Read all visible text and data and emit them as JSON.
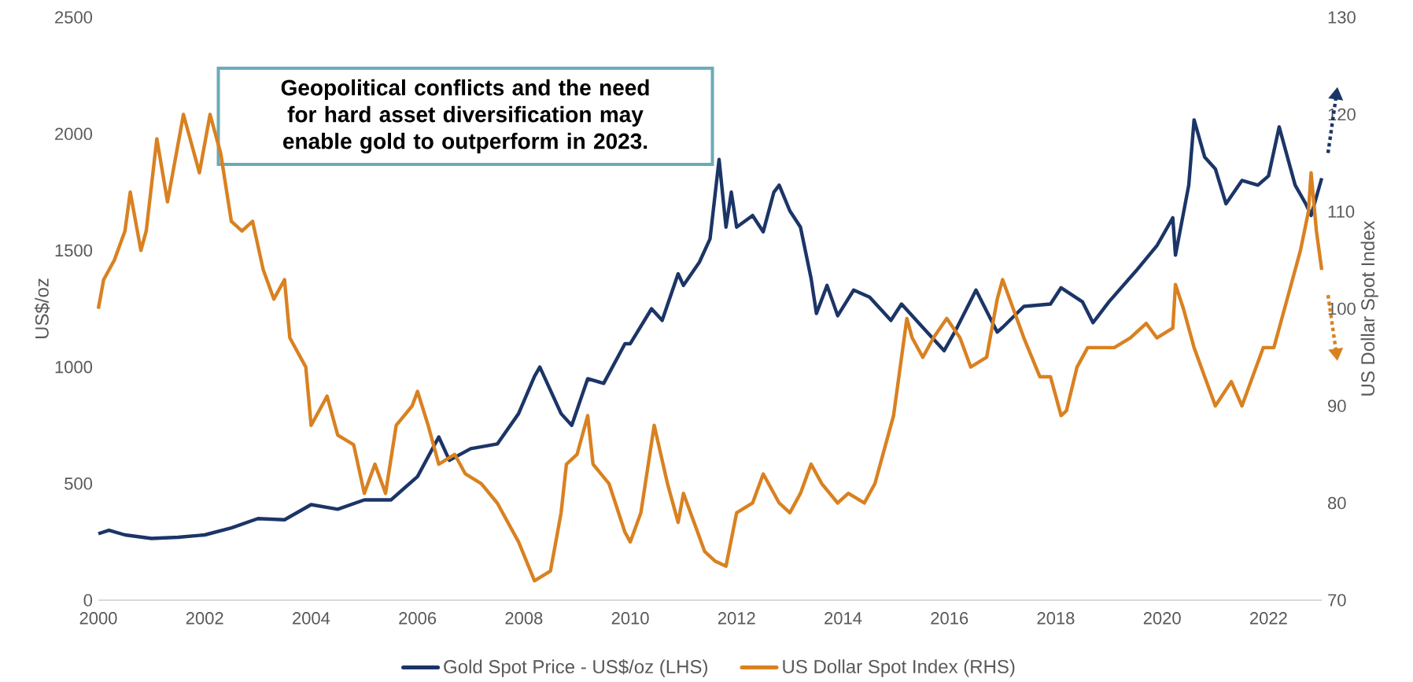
{
  "chart_data": {
    "type": "line",
    "annotations": [
      "Geopolitical conflicts and the need for hard asset diversification may enable gold to outperform in 2023."
    ],
    "ylabel": "US$/oz",
    "y2label": "US Dollar Spot Index",
    "xlim": [
      2000,
      2023
    ],
    "xticks": [
      2000,
      2002,
      2004,
      2006,
      2008,
      2010,
      2012,
      2014,
      2016,
      2018,
      2020,
      2022
    ],
    "ylim": [
      0,
      2500
    ],
    "yticks": [
      0,
      500,
      1000,
      1500,
      2000,
      2500
    ],
    "y2lim": [
      70,
      130
    ],
    "y2ticks": [
      70,
      80,
      90,
      100,
      110,
      120,
      130
    ],
    "legend": "bottom",
    "series": [
      {
        "name": "Gold Spot Price - US$/oz (LHS)",
        "color": "#1c3567",
        "x": [
          2000.0,
          2000.2,
          2000.5,
          2001.0,
          2001.5,
          2002.0,
          2002.5,
          2003.0,
          2003.5,
          2004.0,
          2004.5,
          2005.0,
          2005.5,
          2006.0,
          2006.4,
          2006.6,
          2007.0,
          2007.5,
          2007.9,
          2008.2,
          2008.3,
          2008.7,
          2008.9,
          2009.2,
          2009.5,
          2009.9,
          2010.0,
          2010.4,
          2010.6,
          2010.9,
          2011.0,
          2011.3,
          2011.5,
          2011.67,
          2011.8,
          2011.9,
          2012.0,
          2012.3,
          2012.5,
          2012.7,
          2012.8,
          2013.0,
          2013.2,
          2013.4,
          2013.5,
          2013.7,
          2013.9,
          2014.2,
          2014.5,
          2014.9,
          2015.1,
          2015.5,
          2015.9,
          2016.1,
          2016.5,
          2016.9,
          2017.0,
          2017.4,
          2017.9,
          2018.1,
          2018.5,
          2018.7,
          2019.0,
          2019.5,
          2019.9,
          2020.2,
          2020.25,
          2020.5,
          2020.6,
          2020.8,
          2021.0,
          2021.2,
          2021.5,
          2021.8,
          2022.0,
          2022.2,
          2022.5,
          2022.7,
          2022.8,
          2023.0
        ],
        "values": [
          285,
          300,
          280,
          265,
          270,
          280,
          310,
          350,
          345,
          410,
          390,
          430,
          430,
          530,
          700,
          600,
          650,
          670,
          800,
          960,
          1000,
          800,
          750,
          950,
          930,
          1100,
          1100,
          1250,
          1200,
          1400,
          1350,
          1450,
          1550,
          1890,
          1600,
          1750,
          1600,
          1650,
          1580,
          1750,
          1780,
          1670,
          1600,
          1380,
          1230,
          1350,
          1220,
          1330,
          1300,
          1200,
          1270,
          1170,
          1070,
          1150,
          1330,
          1150,
          1170,
          1260,
          1270,
          1340,
          1280,
          1190,
          1280,
          1410,
          1520,
          1640,
          1480,
          1780,
          2060,
          1900,
          1850,
          1700,
          1800,
          1780,
          1820,
          2030,
          1780,
          1700,
          1650,
          1810
        ]
      },
      {
        "name": "US Dollar Spot Index (RHS)",
        "color": "#d98121",
        "axis": "y2",
        "x": [
          2000.0,
          2000.1,
          2000.3,
          2000.5,
          2000.6,
          2000.8,
          2000.9,
          2001.1,
          2001.3,
          2001.4,
          2001.6,
          2001.9,
          2002.1,
          2002.3,
          2002.5,
          2002.7,
          2002.9,
          2003.1,
          2003.3,
          2003.5,
          2003.6,
          2003.9,
          2004.0,
          2004.3,
          2004.5,
          2004.8,
          2005.0,
          2005.2,
          2005.4,
          2005.6,
          2005.9,
          2006.0,
          2006.2,
          2006.4,
          2006.7,
          2006.9,
          2007.2,
          2007.5,
          2007.9,
          2008.2,
          2008.5,
          2008.7,
          2008.8,
          2009.0,
          2009.2,
          2009.3,
          2009.6,
          2009.9,
          2010.0,
          2010.2,
          2010.45,
          2010.7,
          2010.9,
          2011.0,
          2011.4,
          2011.6,
          2011.8,
          2012.0,
          2012.3,
          2012.5,
          2012.8,
          2013.0,
          2013.2,
          2013.4,
          2013.6,
          2013.9,
          2014.1,
          2014.4,
          2014.6,
          2014.8,
          2014.95,
          2015.2,
          2015.3,
          2015.5,
          2015.7,
          2015.95,
          2016.2,
          2016.4,
          2016.7,
          2016.9,
          2017.0,
          2017.2,
          2017.4,
          2017.7,
          2017.9,
          2018.1,
          2018.2,
          2018.4,
          2018.6,
          2018.9,
          2019.1,
          2019.4,
          2019.7,
          2019.9,
          2020.2,
          2020.25,
          2020.4,
          2020.6,
          2020.8,
          2021.0,
          2021.3,
          2021.5,
          2021.7,
          2021.9,
          2022.1,
          2022.3,
          2022.5,
          2022.6,
          2022.75,
          2022.8,
          2022.9,
          2023.0
        ],
        "values": [
          100,
          103,
          105,
          108,
          112,
          106,
          108,
          117.5,
          111,
          114,
          120,
          114,
          120,
          116,
          109,
          108,
          109,
          104,
          101,
          103,
          97,
          94,
          88,
          91,
          87,
          86,
          81,
          84,
          81,
          88,
          90,
          91.5,
          88,
          84,
          85,
          83,
          82,
          80,
          76,
          72,
          73,
          79,
          84,
          85,
          89,
          84,
          82,
          77,
          76,
          79,
          88,
          82,
          78,
          81,
          75,
          74,
          73.5,
          79,
          80,
          83,
          80,
          79,
          81,
          84,
          82,
          80,
          81,
          80,
          82,
          86,
          89,
          99,
          97,
          95,
          97,
          99,
          97,
          94,
          95,
          101,
          103,
          100,
          97,
          93,
          93,
          89,
          89.5,
          94,
          96,
          96,
          96,
          97,
          98.5,
          97,
          98,
          102.5,
          100,
          96,
          93,
          90,
          92.5,
          90,
          93,
          96,
          96,
          100,
          104,
          106,
          110,
          114,
          108,
          104
        ]
      }
    ]
  }
}
